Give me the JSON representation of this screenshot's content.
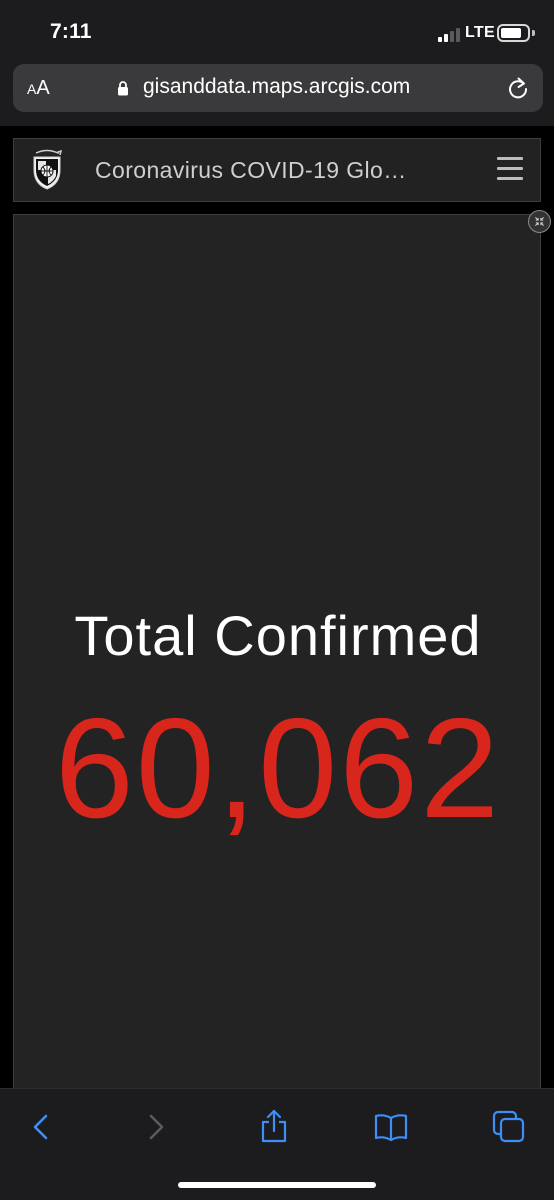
{
  "status_bar": {
    "time": "7:11",
    "network": "LTE",
    "signal_bars": 4,
    "signal_bars_active": 2
  },
  "browser": {
    "text_size_label": "AA",
    "url": "gisanddata.maps.arcgis.com",
    "icons": [
      "lock-icon",
      "reload-icon"
    ]
  },
  "site": {
    "title": "Coronavirus COVID-19 Glo…",
    "logo": "shield-logo-icon",
    "menu": "hamburger-menu-icon"
  },
  "panel": {
    "label": "Total Confirmed",
    "value": "60,062",
    "value_color": "#d9261c",
    "collapse": "collapse-icon"
  },
  "toolbar": {
    "accent_color": "#3e8ef7",
    "items": [
      {
        "name": "back",
        "icon": "chevron-left-icon",
        "enabled": true
      },
      {
        "name": "forward",
        "icon": "chevron-right-icon",
        "enabled": false
      },
      {
        "name": "share",
        "icon": "share-icon",
        "enabled": true
      },
      {
        "name": "bookmarks",
        "icon": "book-icon",
        "enabled": true
      },
      {
        "name": "tabs",
        "icon": "tabs-icon",
        "enabled": true
      }
    ]
  }
}
